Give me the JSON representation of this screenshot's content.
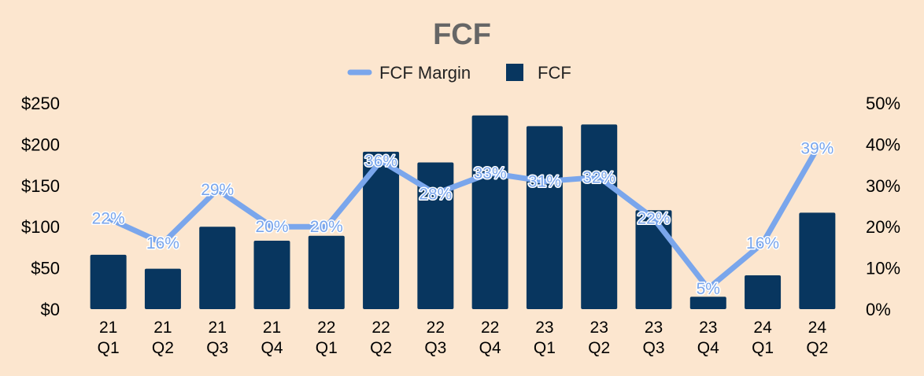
{
  "chart_data": {
    "type": "bar",
    "title": "FCF",
    "categories": [
      [
        "21",
        "Q1"
      ],
      [
        "21",
        "Q2"
      ],
      [
        "21",
        "Q3"
      ],
      [
        "21",
        "Q4"
      ],
      [
        "22",
        "Q1"
      ],
      [
        "22",
        "Q2"
      ],
      [
        "22",
        "Q3"
      ],
      [
        "22",
        "Q4"
      ],
      [
        "23",
        "Q1"
      ],
      [
        "23",
        "Q2"
      ],
      [
        "23",
        "Q3"
      ],
      [
        "23",
        "Q4"
      ],
      [
        "24",
        "Q1"
      ],
      [
        "24",
        "Q2"
      ]
    ],
    "series": [
      {
        "name": "FCF",
        "type": "bar",
        "axis": "left",
        "color": "#08365f",
        "values": [
          66,
          49,
          100,
          83,
          89,
          191,
          178,
          235,
          222,
          224,
          120,
          15,
          41,
          117
        ]
      },
      {
        "name": "FCF Margin",
        "type": "line",
        "axis": "right",
        "color": "#7aa6ec",
        "values": [
          22,
          16,
          29,
          20,
          20,
          36,
          28,
          33,
          31,
          32,
          22,
          5,
          16,
          39
        ],
        "labels": [
          "22%",
          "16%",
          "29%",
          "20%",
          "20%",
          "36%",
          "28%",
          "33%",
          "31%",
          "32%",
          "22%",
          "5%",
          "16%",
          "39%"
        ]
      }
    ],
    "y_left": {
      "ylim": [
        0,
        250
      ],
      "ticks": [
        "$0",
        "$50",
        "$100",
        "$150",
        "$200",
        "$250"
      ]
    },
    "y_right": {
      "ylim": [
        0,
        50
      ],
      "ticks": [
        "0%",
        "10%",
        "20%",
        "30%",
        "40%",
        "50%"
      ]
    },
    "legend": {
      "position": "top-center",
      "entries": [
        "FCF Margin",
        "FCF"
      ]
    },
    "grid": false
  }
}
